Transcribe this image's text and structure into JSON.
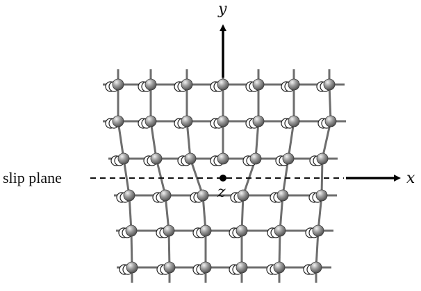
{
  "labels": {
    "y_axis": "y",
    "x_axis": "x",
    "z_axis": "z",
    "slip_plane": "slip plane"
  },
  "colors": {
    "lattice_line": "#6e6e6e",
    "atom_fill_dark": "#7a7a7a",
    "atom_fill_light": "#e6e6e6",
    "ghost_atom_stroke": "#222222",
    "axis": "#000000"
  }
}
